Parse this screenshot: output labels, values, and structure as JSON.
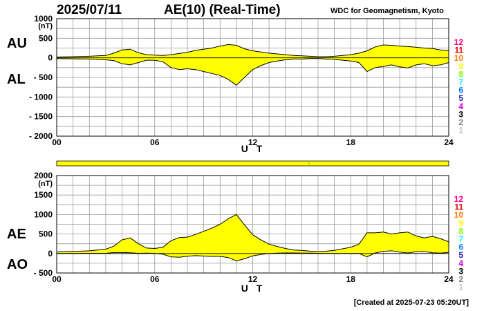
{
  "header": {
    "date": "2025/07/11",
    "title": "AE(10) (Real-Time)",
    "source": "WDC for Geomagnetism, Kyoto"
  },
  "footer": {
    "created": "[Created at 2025-07-23 05:20UT]"
  },
  "station_labels": [
    {
      "text": "12",
      "color": "#ff0080"
    },
    {
      "text": "11",
      "color": "#e00000"
    },
    {
      "text": "10",
      "color": "#ff8000"
    },
    {
      "text": "9",
      "color": "#ffff00"
    },
    {
      "text": "8",
      "color": "#80ff00"
    },
    {
      "text": "7",
      "color": "#00ffff"
    },
    {
      "text": "6",
      "color": "#0080ff"
    },
    {
      "text": "5",
      "color": "#2020c0"
    },
    {
      "text": "4",
      "color": "#e000e0"
    },
    {
      "text": "3",
      "color": "#000000"
    },
    {
      "text": "2",
      "color": "#808080"
    },
    {
      "text": "1",
      "color": "#c8c8c8"
    }
  ],
  "fill_color": "#ffff00",
  "chart_data": [
    {
      "type": "area",
      "panel": "AU/AL",
      "upper_label": "AU",
      "lower_label": "AL",
      "unit": "(nT)",
      "xlabel": "U T",
      "xlim": [
        0,
        24
      ],
      "ylim": [
        -2000,
        1000
      ],
      "yticks": [
        "1000",
        "500",
        "0",
        "- 500",
        "- 1000",
        "- 1500",
        "- 2000"
      ],
      "xticks": [
        "00",
        "06",
        "12",
        "18",
        "24"
      ],
      "grid": true,
      "series": [
        {
          "name": "AU",
          "x": [
            0,
            1,
            2,
            2.5,
            3,
            3.5,
            4,
            4.5,
            5,
            5.5,
            6,
            6.5,
            7,
            7.5,
            8,
            8.5,
            9,
            9.5,
            10,
            10.5,
            11,
            11.5,
            12,
            12.5,
            13,
            13.5,
            14,
            14.5,
            15,
            15.5,
            16,
            16.5,
            17,
            17.5,
            18,
            18.5,
            19,
            19.5,
            20,
            20.5,
            21,
            21.5,
            22,
            22.5,
            23,
            23.5,
            24
          ],
          "values": [
            20,
            30,
            40,
            50,
            60,
            120,
            200,
            220,
            130,
            80,
            70,
            60,
            80,
            110,
            140,
            190,
            220,
            250,
            300,
            340,
            320,
            230,
            180,
            150,
            120,
            100,
            80,
            60,
            50,
            40,
            30,
            30,
            40,
            60,
            80,
            120,
            180,
            280,
            330,
            320,
            300,
            290,
            270,
            250,
            240,
            200,
            180
          ]
        },
        {
          "name": "AL",
          "x": [
            0,
            1,
            2,
            2.5,
            3,
            3.5,
            4,
            4.5,
            5,
            5.5,
            6,
            6.5,
            7,
            7.5,
            8,
            8.5,
            9,
            9.5,
            10,
            10.5,
            11,
            11.5,
            12,
            12.5,
            13,
            13.5,
            14,
            14.5,
            15,
            15.5,
            16,
            16.5,
            17,
            17.5,
            18,
            18.5,
            19,
            19.5,
            20,
            20.5,
            21,
            21.5,
            22,
            22.5,
            23,
            23.5,
            24
          ],
          "values": [
            -20,
            -25,
            -30,
            -40,
            -50,
            -70,
            -150,
            -180,
            -120,
            -60,
            -60,
            -100,
            -250,
            -300,
            -280,
            -300,
            -350,
            -400,
            -450,
            -550,
            -700,
            -500,
            -300,
            -200,
            -120,
            -80,
            -50,
            -30,
            -30,
            -20,
            -20,
            -30,
            -40,
            -60,
            -80,
            -120,
            -350,
            -250,
            -220,
            -180,
            -230,
            -260,
            -180,
            -150,
            -200,
            -180,
            -120
          ]
        }
      ]
    },
    {
      "type": "area",
      "panel": "AE/AO",
      "upper_label": "AE",
      "lower_label": "AO",
      "unit": "(nT)",
      "xlabel": "U T",
      "xlim": [
        0,
        24
      ],
      "ylim": [
        -500,
        2000
      ],
      "yticks": [
        "2000",
        "1500",
        "1000",
        "500",
        "0",
        "- 500"
      ],
      "xticks": [
        "00",
        "06",
        "12",
        "18",
        "24"
      ],
      "grid": true,
      "upper_bar_color": "#ffff00",
      "series": [
        {
          "name": "AE",
          "x": [
            0,
            1,
            2,
            2.5,
            3,
            3.5,
            4,
            4.5,
            5,
            5.5,
            6,
            6.5,
            7,
            7.5,
            8,
            8.5,
            9,
            9.5,
            10,
            10.5,
            11,
            11.5,
            12,
            12.5,
            13,
            13.5,
            14,
            14.5,
            15,
            15.5,
            16,
            16.5,
            17,
            17.5,
            18,
            18.5,
            19,
            19.5,
            20,
            20.5,
            21,
            21.5,
            22,
            22.5,
            23,
            23.5,
            24
          ],
          "values": [
            40,
            55,
            70,
            90,
            110,
            190,
            350,
            400,
            250,
            140,
            130,
            160,
            330,
            410,
            420,
            490,
            570,
            650,
            750,
            890,
            1000,
            730,
            480,
            350,
            240,
            180,
            130,
            90,
            80,
            60,
            50,
            60,
            80,
            120,
            160,
            240,
            530,
            530,
            550,
            500,
            530,
            550,
            450,
            400,
            440,
            380,
            300
          ]
        },
        {
          "name": "AO",
          "x": [
            0,
            1,
            2,
            2.5,
            3,
            3.5,
            4,
            4.5,
            5,
            5.5,
            6,
            6.5,
            7,
            7.5,
            8,
            8.5,
            9,
            9.5,
            10,
            10.5,
            11,
            11.5,
            12,
            12.5,
            13,
            13.5,
            14,
            14.5,
            15,
            15.5,
            16,
            16.5,
            17,
            17.5,
            18,
            18.5,
            19,
            19.5,
            20,
            20.5,
            21,
            21.5,
            22,
            22.5,
            23,
            23.5,
            24
          ],
          "values": [
            0,
            3,
            5,
            5,
            5,
            25,
            25,
            20,
            5,
            10,
            5,
            -20,
            -85,
            -95,
            -70,
            -55,
            -65,
            -75,
            -75,
            -105,
            -190,
            -135,
            -60,
            -25,
            0,
            10,
            15,
            15,
            10,
            10,
            5,
            0,
            0,
            0,
            0,
            0,
            -85,
            15,
            55,
            70,
            35,
            15,
            45,
            50,
            20,
            10,
            30
          ]
        }
      ]
    }
  ]
}
